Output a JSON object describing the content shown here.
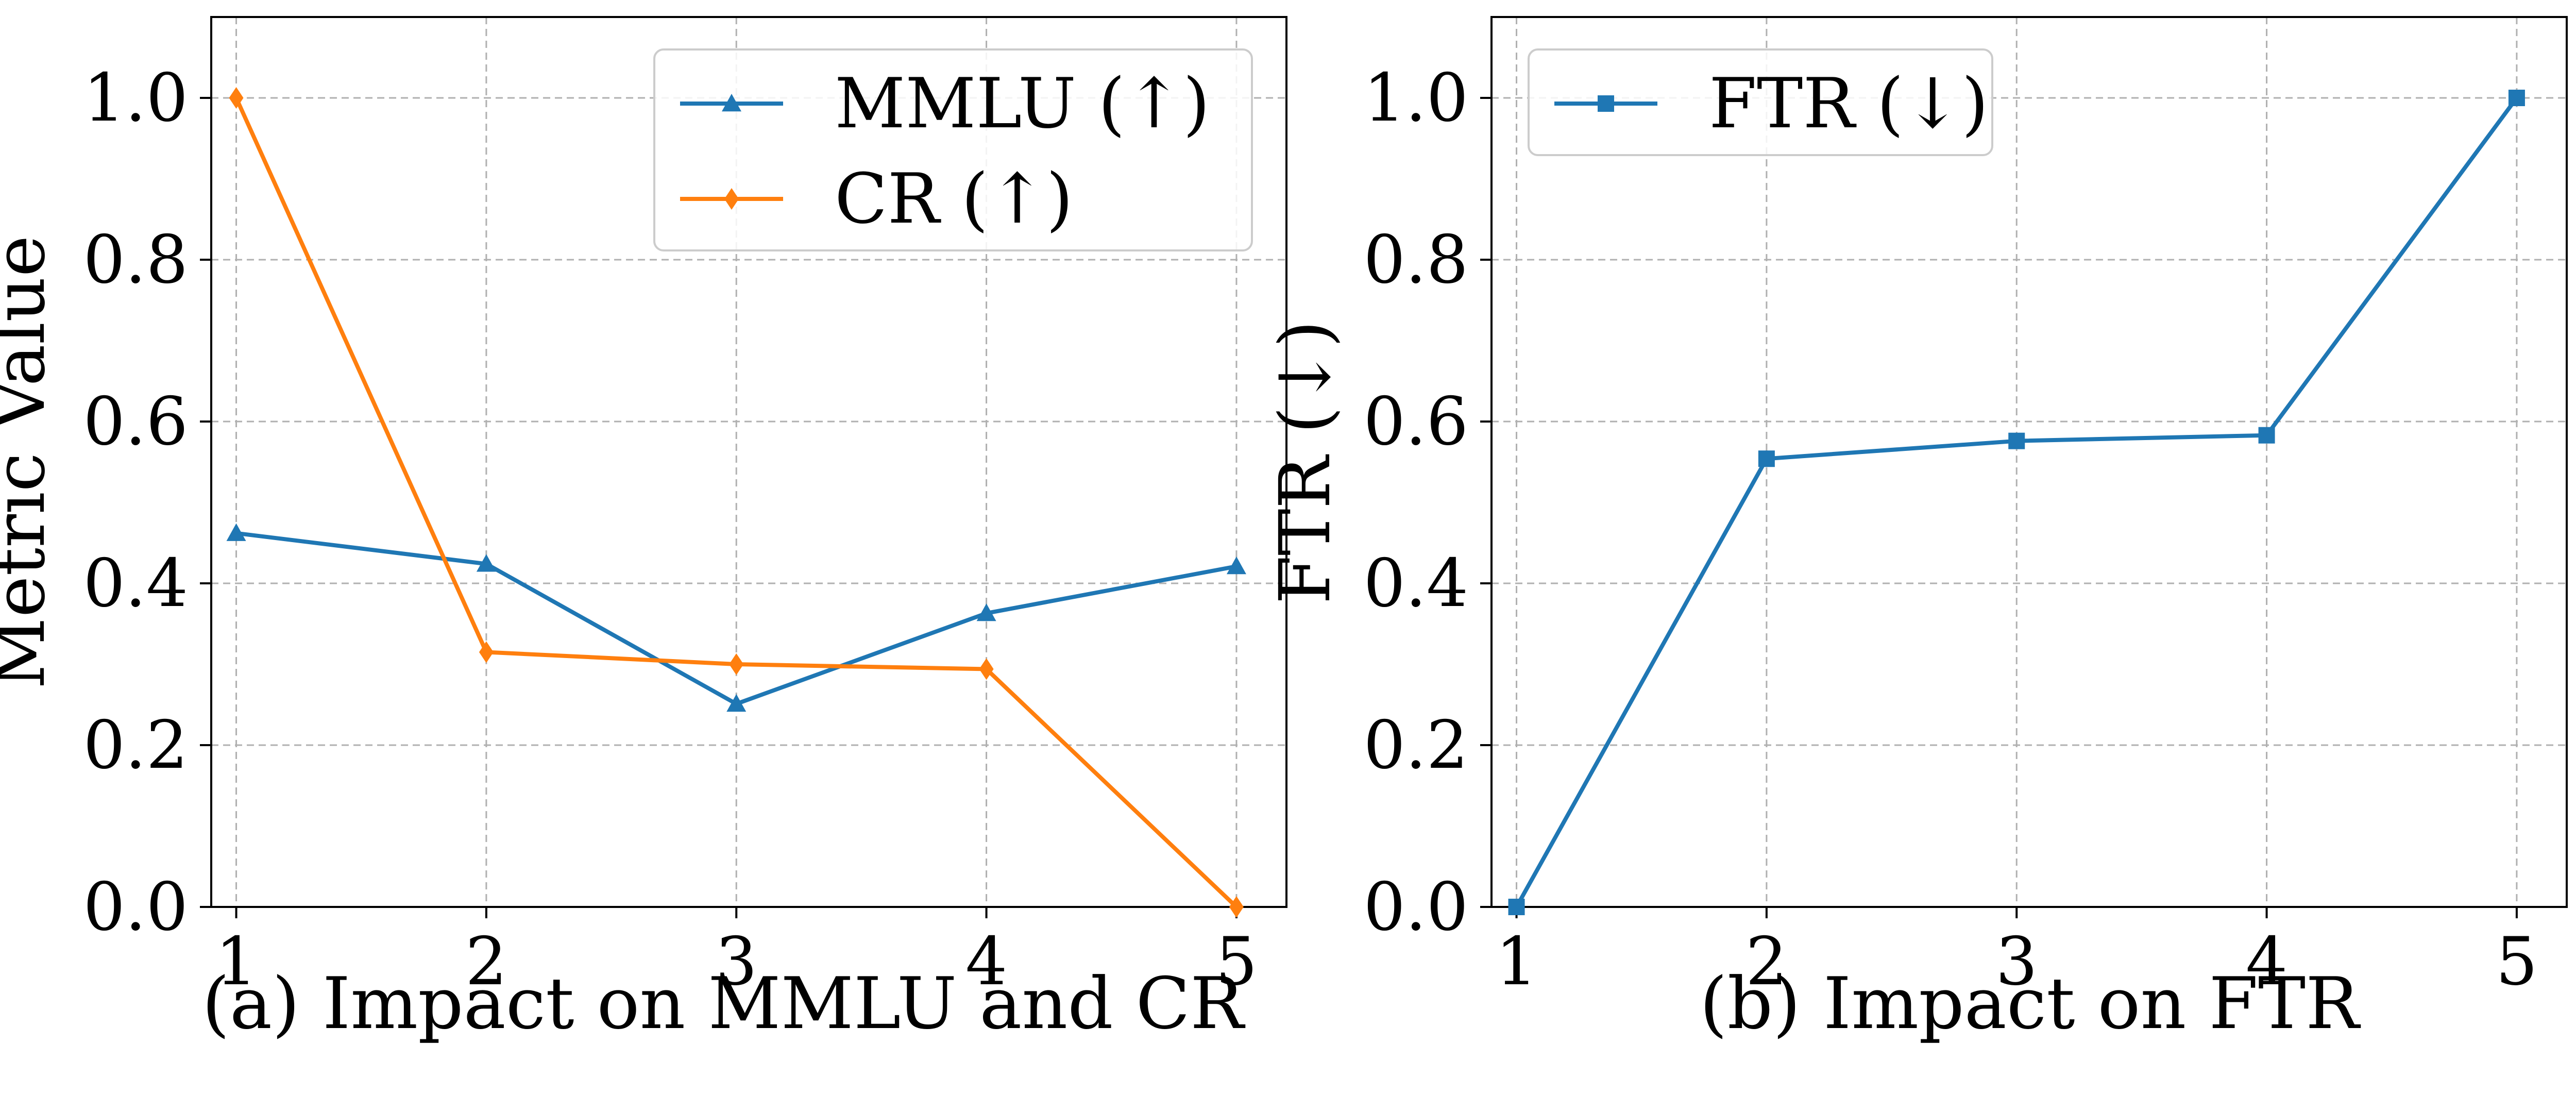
{
  "chart_data": [
    {
      "type": "line",
      "caption": "(a) Impact on MMLU and CR",
      "xlabel": "",
      "ylabel": "Metric Value",
      "x": [
        1,
        2,
        3,
        4,
        5
      ],
      "xticks": [
        "1",
        "2",
        "3",
        "4",
        "5"
      ],
      "yticks": [
        "0.0",
        "0.2",
        "0.4",
        "0.6",
        "0.8",
        "1.0"
      ],
      "xlim": [
        0.9,
        5.2
      ],
      "ylim": [
        0.0,
        1.1
      ],
      "grid": true,
      "legend_position": "upper right",
      "series": [
        {
          "name": "MMLU (↑)",
          "color": "#1f77b4",
          "marker": "triangle",
          "values": [
            0.462,
            0.424,
            0.251,
            0.363,
            0.421
          ]
        },
        {
          "name": "CR (↑)",
          "color": "#ff7f0e",
          "marker": "diamond",
          "values": [
            1.0,
            0.315,
            0.3,
            0.294,
            0.0
          ]
        }
      ]
    },
    {
      "type": "line",
      "caption": "(b) Impact on FTR",
      "xlabel": "",
      "ylabel": "FTR (↓)",
      "x": [
        1,
        2,
        3,
        4,
        5
      ],
      "xticks": [
        "1",
        "2",
        "3",
        "4",
        "5"
      ],
      "yticks": [
        "0.0",
        "0.2",
        "0.4",
        "0.6",
        "0.8",
        "1.0"
      ],
      "xlim": [
        0.9,
        5.2
      ],
      "ylim": [
        0.0,
        1.1
      ],
      "grid": true,
      "legend_position": "upper left",
      "series": [
        {
          "name": "FTR (↓)",
          "color": "#1f77b4",
          "marker": "square",
          "values": [
            0.0,
            0.554,
            0.576,
            0.583,
            1.0
          ]
        }
      ]
    }
  ]
}
